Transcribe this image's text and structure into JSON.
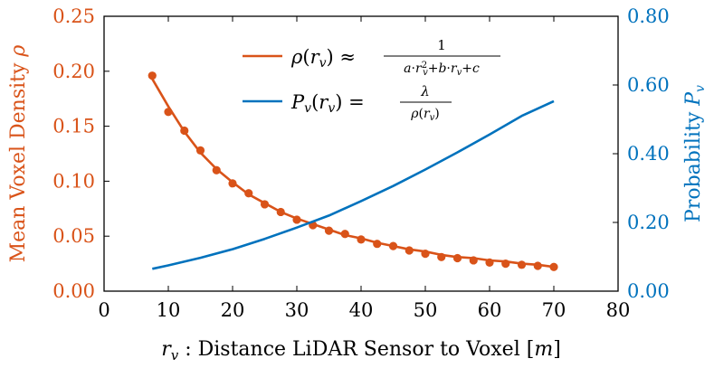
{
  "chart_data": {
    "type": "line",
    "xlabel": "r_v : Distance LiDAR Sensor to Voxel [m]",
    "xlabel_parts": {
      "var": "r",
      "sub": "v",
      "rest": " : Distance LiDAR Sensor to Voxel [",
      "unit": "m",
      "close": "]"
    },
    "ylabel_left": "Mean Voxel Density ρ",
    "ylabel_left_parts": {
      "text": "Mean Voxel Density ",
      "symbol": "ρ"
    },
    "ylabel_right": "Probability P_v",
    "ylabel_right_parts": {
      "text": "Probability ",
      "symbol": "P",
      "sub": "v"
    },
    "xlim": [
      0,
      80
    ],
    "ylim_left": [
      0,
      0.25
    ],
    "ylim_right": [
      0,
      0.8
    ],
    "x_ticks": [
      0,
      10,
      20,
      30,
      40,
      50,
      60,
      70,
      80
    ],
    "x_tick_labels": [
      "0",
      "10",
      "20",
      "30",
      "40",
      "50",
      "60",
      "70",
      "80"
    ],
    "y_left_ticks": [
      0,
      0.05,
      0.1,
      0.15,
      0.2,
      0.25
    ],
    "y_left_tick_labels": [
      "0.00",
      "0.05",
      "0.10",
      "0.15",
      "0.20",
      "0.25"
    ],
    "y_right_ticks": [
      0,
      0.2,
      0.4,
      0.6,
      0.8
    ],
    "y_right_tick_labels": [
      "0.00",
      "0.20",
      "0.40",
      "0.60",
      "0.80"
    ],
    "colors": {
      "density": "#d95319",
      "probability": "#0072bd",
      "axis": "#000000"
    },
    "grid": false,
    "legend_position": "top-center",
    "legend": [
      {
        "series": "density_fit",
        "label": "ρ(r_v) ≈ 1 / (a·r_v² + b·r_v + c)"
      },
      {
        "series": "probability",
        "label": "P_v(r_v) = λ / ρ(r_v)"
      }
    ],
    "series": [
      {
        "id": "density_points",
        "axis": "left",
        "kind": "scatter",
        "x": [
          7.5,
          10,
          12.5,
          15,
          17.5,
          20,
          22.5,
          25,
          27.5,
          30,
          32.5,
          35,
          37.5,
          40,
          42.5,
          45,
          47.5,
          50,
          52.5,
          55,
          57.5,
          60,
          62.5,
          65,
          67.5,
          70
        ],
        "y": [
          0.196,
          0.163,
          0.146,
          0.128,
          0.11,
          0.098,
          0.089,
          0.079,
          0.072,
          0.065,
          0.06,
          0.055,
          0.052,
          0.047,
          0.043,
          0.041,
          0.037,
          0.034,
          0.031,
          0.03,
          0.028,
          0.026,
          0.025,
          0.024,
          0.023,
          0.022
        ]
      },
      {
        "id": "density_fit",
        "axis": "left",
        "kind": "line",
        "x": [
          7.5,
          10,
          12.5,
          15,
          17.5,
          20,
          22.5,
          25,
          27.5,
          30,
          32.5,
          35,
          37.5,
          40,
          42.5,
          45,
          47.5,
          50,
          52.5,
          55,
          57.5,
          60,
          62.5,
          65,
          67.5,
          70
        ],
        "y": [
          0.193,
          0.168,
          0.145,
          0.126,
          0.111,
          0.099,
          0.088,
          0.08,
          0.072,
          0.066,
          0.061,
          0.056,
          0.051,
          0.048,
          0.044,
          0.041,
          0.038,
          0.036,
          0.033,
          0.031,
          0.03,
          0.028,
          0.027,
          0.025,
          0.024,
          0.022
        ]
      },
      {
        "id": "probability",
        "axis": "right",
        "kind": "line",
        "x": [
          7.5,
          10,
          15,
          20,
          25,
          30,
          35,
          40,
          45,
          50,
          55,
          60,
          65,
          70
        ],
        "y": [
          0.065,
          0.075,
          0.097,
          0.122,
          0.152,
          0.185,
          0.22,
          0.262,
          0.306,
          0.354,
          0.404,
          0.456,
          0.51,
          0.553
        ]
      }
    ]
  }
}
